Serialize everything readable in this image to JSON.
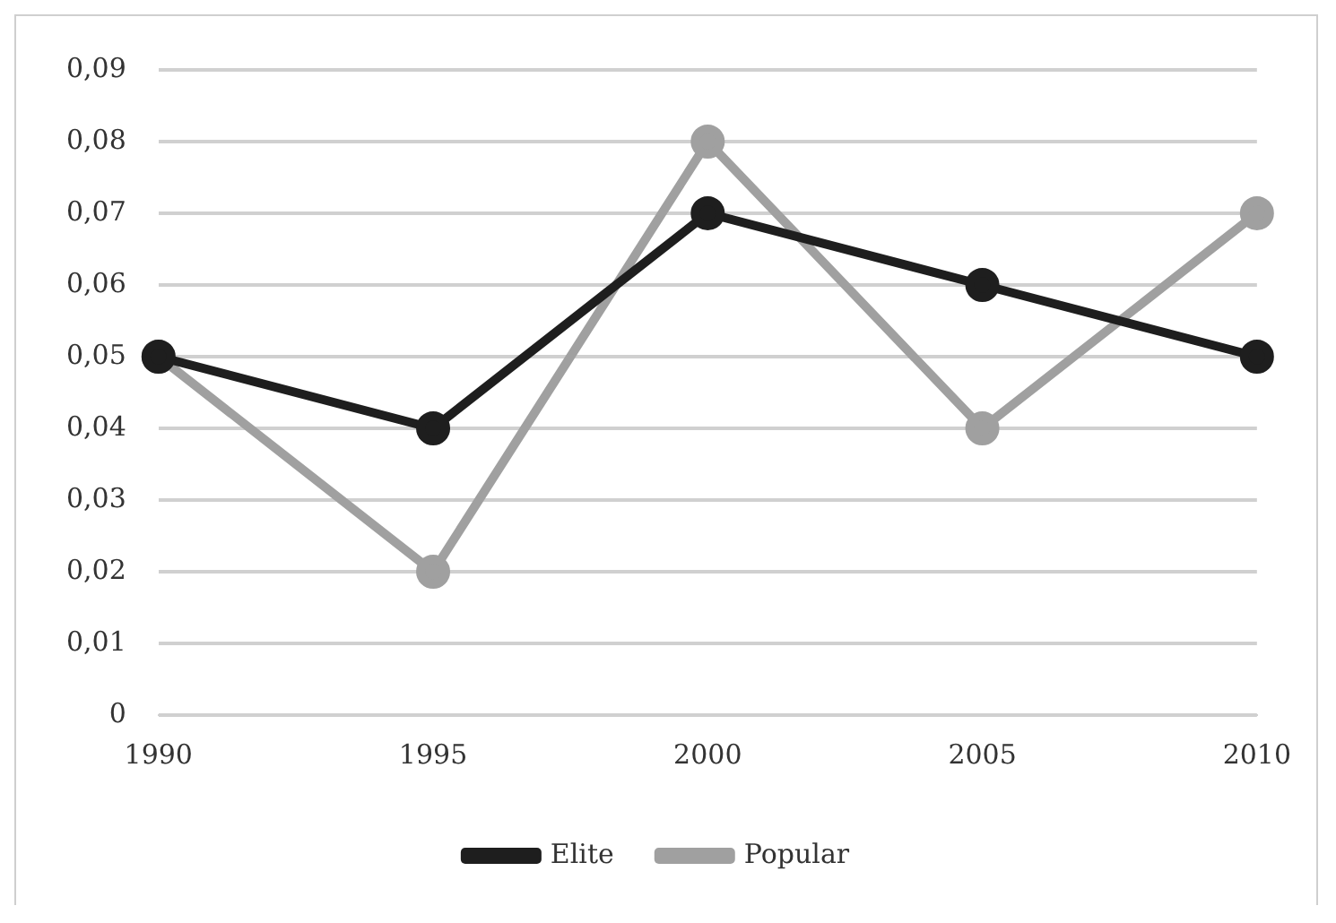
{
  "chart_data": {
    "type": "line",
    "categories": [
      "1990",
      "1995",
      "2000",
      "2005",
      "2010"
    ],
    "series": [
      {
        "name": "Popular",
        "color": "#a0a0a0",
        "values": [
          0.05,
          0.02,
          0.08,
          0.04,
          0.07
        ]
      },
      {
        "name": "Elite",
        "color": "#1e1e1e",
        "values": [
          0.05,
          0.04,
          0.07,
          0.06,
          0.05
        ]
      }
    ],
    "ylim": [
      0,
      0.09
    ],
    "yticks": [
      {
        "value": 0,
        "label": "0"
      },
      {
        "value": 0.01,
        "label": "0,01"
      },
      {
        "value": 0.02,
        "label": "0,02"
      },
      {
        "value": 0.03,
        "label": "0,03"
      },
      {
        "value": 0.04,
        "label": "0,04"
      },
      {
        "value": 0.05,
        "label": "0,05"
      },
      {
        "value": 0.06,
        "label": "0,06"
      },
      {
        "value": 0.07,
        "label": "0,07"
      },
      {
        "value": 0.08,
        "label": "0,08"
      },
      {
        "value": 0.09,
        "label": "0,09"
      }
    ],
    "grid": "y",
    "legend": "bottom",
    "marker": "circle",
    "line_style": "solid"
  }
}
